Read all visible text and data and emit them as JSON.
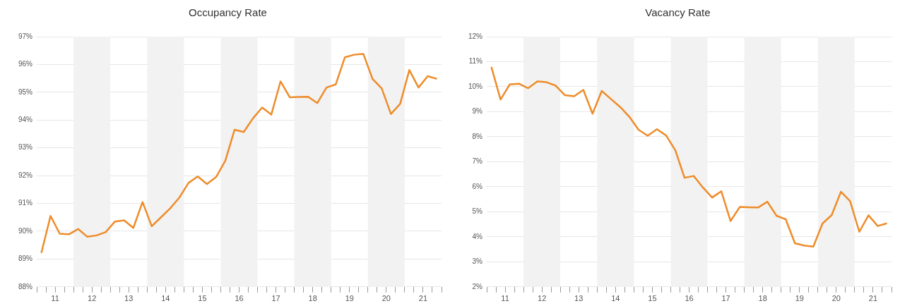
{
  "chart_data": [
    {
      "type": "line",
      "title": "Occupancy Rate",
      "x": [
        11.125,
        11.375,
        11.625,
        11.875,
        12.125,
        12.375,
        12.625,
        12.875,
        13.125,
        13.375,
        13.625,
        13.875,
        14.125,
        14.375,
        14.625,
        14.875,
        15.125,
        15.375,
        15.625,
        15.875,
        16.125,
        16.375,
        16.625,
        16.875,
        17.125,
        17.375,
        17.625,
        17.875,
        18.125,
        18.375,
        18.625,
        18.875,
        19.125,
        19.375,
        19.625,
        19.875,
        20.125,
        20.375,
        20.625,
        20.875,
        21.125,
        21.375,
        21.625,
        21.875
      ],
      "series": [
        {
          "color": "#ee8c2a",
          "values": [
            89.22,
            90.55,
            89.91,
            89.89,
            90.08,
            89.8,
            89.85,
            89.97,
            90.35,
            90.39,
            90.12,
            91.05,
            90.18,
            90.5,
            90.82,
            91.21,
            91.74,
            91.97,
            91.7,
            91.95,
            92.54,
            93.65,
            93.57,
            94.06,
            94.45,
            94.2,
            95.39,
            94.82,
            94.83,
            94.84,
            94.61,
            95.17,
            95.28,
            96.26,
            96.35,
            96.38,
            95.48,
            95.14,
            94.22,
            94.58,
            95.8,
            95.17,
            95.58,
            95.48
          ]
        }
      ],
      "xlim": [
        11,
        22
      ],
      "xticks": [
        {
          "value": 11,
          "label": null
        },
        {
          "value": 11.25,
          "label": null
        },
        {
          "value": 11.5,
          "label": "11"
        },
        {
          "value": 11.75,
          "label": null
        },
        {
          "value": 12,
          "label": null
        },
        {
          "value": 12.25,
          "label": null
        },
        {
          "value": 12.5,
          "label": "12"
        },
        {
          "value": 12.75,
          "label": null
        },
        {
          "value": 13,
          "label": null
        },
        {
          "value": 13.25,
          "label": null
        },
        {
          "value": 13.5,
          "label": "13"
        },
        {
          "value": 13.75,
          "label": null
        },
        {
          "value": 14,
          "label": null
        },
        {
          "value": 14.25,
          "label": null
        },
        {
          "value": 14.5,
          "label": "14"
        },
        {
          "value": 14.75,
          "label": null
        },
        {
          "value": 15,
          "label": null
        },
        {
          "value": 15.25,
          "label": null
        },
        {
          "value": 15.5,
          "label": "15"
        },
        {
          "value": 15.75,
          "label": null
        },
        {
          "value": 16,
          "label": null
        },
        {
          "value": 16.25,
          "label": null
        },
        {
          "value": 16.5,
          "label": "16"
        },
        {
          "value": 16.75,
          "label": null
        },
        {
          "value": 17,
          "label": null
        },
        {
          "value": 17.25,
          "label": null
        },
        {
          "value": 17.5,
          "label": "17"
        },
        {
          "value": 17.75,
          "label": null
        },
        {
          "value": 18,
          "label": null
        },
        {
          "value": 18.25,
          "label": null
        },
        {
          "value": 18.5,
          "label": "18"
        },
        {
          "value": 18.75,
          "label": null
        },
        {
          "value": 19,
          "label": null
        },
        {
          "value": 19.25,
          "label": null
        },
        {
          "value": 19.5,
          "label": "19"
        },
        {
          "value": 19.75,
          "label": null
        },
        {
          "value": 20,
          "label": null
        },
        {
          "value": 20.25,
          "label": null
        },
        {
          "value": 20.5,
          "label": "20"
        },
        {
          "value": 20.75,
          "label": null
        },
        {
          "value": 21,
          "label": null
        },
        {
          "value": 21.25,
          "label": null
        },
        {
          "value": 21.5,
          "label": "21"
        },
        {
          "value": 21.75,
          "label": null
        },
        {
          "value": 22,
          "label": null
        }
      ],
      "ylim": [
        88,
        97
      ],
      "yticks": [
        {
          "value": 88,
          "label": "88%"
        },
        {
          "value": 89,
          "label": "89%"
        },
        {
          "value": 90,
          "label": "90%"
        },
        {
          "value": 91,
          "label": "91%"
        },
        {
          "value": 92,
          "label": "92%"
        },
        {
          "value": 93,
          "label": "93%"
        },
        {
          "value": 94,
          "label": "94%"
        },
        {
          "value": 95,
          "label": "95%"
        },
        {
          "value": 96,
          "label": "96%"
        },
        {
          "value": 97,
          "label": "97%"
        }
      ],
      "bands": [
        {
          "axis": "x",
          "from": 12,
          "to": 13,
          "color": "#f2f2f2"
        },
        {
          "axis": "x",
          "from": 14,
          "to": 15,
          "color": "#f2f2f2"
        },
        {
          "axis": "x",
          "from": 16,
          "to": 17,
          "color": "#f2f2f2"
        },
        {
          "axis": "x",
          "from": 18,
          "to": 19,
          "color": "#f2f2f2"
        },
        {
          "axis": "x",
          "from": 20,
          "to": 21,
          "color": "#f2f2f2"
        }
      ],
      "grid": "y",
      "marker": "none",
      "line_style": "solid"
    },
    {
      "type": "line",
      "title": "Vacancy Rate",
      "x": [
        11.125,
        11.375,
        11.625,
        11.875,
        12.125,
        12.375,
        12.625,
        12.875,
        13.125,
        13.375,
        13.625,
        13.875,
        14.125,
        14.375,
        14.625,
        14.875,
        15.125,
        15.375,
        15.625,
        15.875,
        16.125,
        16.375,
        16.625,
        16.875,
        17.125,
        17.375,
        17.625,
        17.875,
        18.125,
        18.375,
        18.625,
        18.875,
        19.125,
        19.375,
        19.625,
        19.875,
        20.125,
        20.375,
        20.625,
        20.875,
        21.125,
        21.375,
        21.625,
        21.875
      ],
      "series": [
        {
          "color": "#ee8c2a",
          "values": [
            10.79,
            9.49,
            10.09,
            10.12,
            9.94,
            10.21,
            10.18,
            10.04,
            9.66,
            9.62,
            9.87,
            8.92,
            9.83,
            9.51,
            9.19,
            8.8,
            8.28,
            8.04,
            8.3,
            8.05,
            7.46,
            6.36,
            6.43,
            5.97,
            5.57,
            5.82,
            4.63,
            5.19,
            5.18,
            5.17,
            5.4,
            4.84,
            4.7,
            3.74,
            3.65,
            3.61,
            4.53,
            4.87,
            5.8,
            5.42,
            4.2,
            4.86,
            4.43,
            4.54
          ]
        }
      ],
      "xlim": [
        11,
        22
      ],
      "xticks": [
        {
          "value": 11,
          "label": null
        },
        {
          "value": 11.25,
          "label": null
        },
        {
          "value": 11.5,
          "label": "11"
        },
        {
          "value": 11.75,
          "label": null
        },
        {
          "value": 12,
          "label": null
        },
        {
          "value": 12.25,
          "label": null
        },
        {
          "value": 12.5,
          "label": "12"
        },
        {
          "value": 12.75,
          "label": null
        },
        {
          "value": 13,
          "label": null
        },
        {
          "value": 13.25,
          "label": null
        },
        {
          "value": 13.5,
          "label": "13"
        },
        {
          "value": 13.75,
          "label": null
        },
        {
          "value": 14,
          "label": null
        },
        {
          "value": 14.25,
          "label": null
        },
        {
          "value": 14.5,
          "label": "14"
        },
        {
          "value": 14.75,
          "label": null
        },
        {
          "value": 15,
          "label": null
        },
        {
          "value": 15.25,
          "label": null
        },
        {
          "value": 15.5,
          "label": "15"
        },
        {
          "value": 15.75,
          "label": null
        },
        {
          "value": 16,
          "label": null
        },
        {
          "value": 16.25,
          "label": null
        },
        {
          "value": 16.5,
          "label": "16"
        },
        {
          "value": 16.75,
          "label": null
        },
        {
          "value": 17,
          "label": null
        },
        {
          "value": 17.25,
          "label": null
        },
        {
          "value": 17.5,
          "label": "17"
        },
        {
          "value": 17.75,
          "label": null
        },
        {
          "value": 18,
          "label": null
        },
        {
          "value": 18.25,
          "label": null
        },
        {
          "value": 18.5,
          "label": "18"
        },
        {
          "value": 18.75,
          "label": null
        },
        {
          "value": 19,
          "label": null
        },
        {
          "value": 19.25,
          "label": null
        },
        {
          "value": 19.5,
          "label": "19"
        },
        {
          "value": 19.75,
          "label": null
        },
        {
          "value": 20,
          "label": null
        },
        {
          "value": 20.25,
          "label": null
        },
        {
          "value": 20.5,
          "label": "20"
        },
        {
          "value": 20.75,
          "label": null
        },
        {
          "value": 21,
          "label": null
        },
        {
          "value": 21.25,
          "label": null
        },
        {
          "value": 21.5,
          "label": "21"
        },
        {
          "value": 21.75,
          "label": null
        },
        {
          "value": 22,
          "label": null
        }
      ],
      "ylim": [
        2,
        12
      ],
      "yticks": [
        {
          "value": 2,
          "label": "2%"
        },
        {
          "value": 3,
          "label": "3%"
        },
        {
          "value": 4,
          "label": "4%"
        },
        {
          "value": 5,
          "label": "5%"
        },
        {
          "value": 6,
          "label": "6%"
        },
        {
          "value": 7,
          "label": "7%"
        },
        {
          "value": 8,
          "label": "8%"
        },
        {
          "value": 9,
          "label": "9%"
        },
        {
          "value": 10,
          "label": "10%"
        },
        {
          "value": 11,
          "label": "11%"
        },
        {
          "value": 12,
          "label": "12%"
        }
      ],
      "bands": [
        {
          "axis": "x",
          "from": 12,
          "to": 13,
          "color": "#f2f2f2"
        },
        {
          "axis": "x",
          "from": 14,
          "to": 15,
          "color": "#f2f2f2"
        },
        {
          "axis": "x",
          "from": 16,
          "to": 17,
          "color": "#f2f2f2"
        },
        {
          "axis": "x",
          "from": 18,
          "to": 19,
          "color": "#f2f2f2"
        },
        {
          "axis": "x",
          "from": 20,
          "to": 21,
          "color": "#f2f2f2"
        }
      ],
      "grid": "y",
      "marker": "none",
      "line_style": "solid"
    }
  ]
}
